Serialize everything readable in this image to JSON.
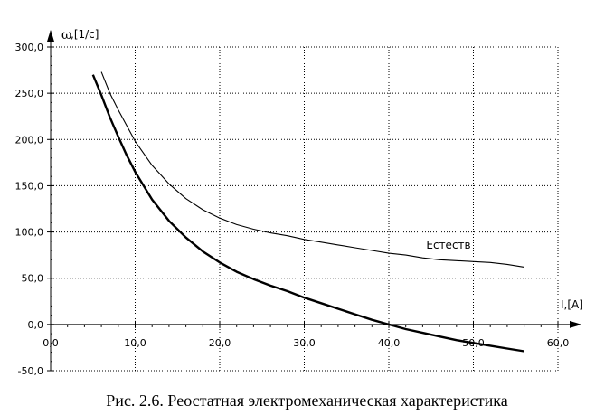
{
  "caption": "Рис. 2.6. Реостатная электромеханическая характеристика",
  "chart_data": {
    "type": "line",
    "title": "",
    "xlabel": "I,[A]",
    "ylabel_symbol": "ω",
    "ylabel_unit": ",[1/c]",
    "xlim": [
      0,
      60
    ],
    "ylim": [
      -50,
      300
    ],
    "grid": true,
    "x_ticks": [
      "0,0",
      "10,0",
      "20,0",
      "30,0",
      "40,0",
      "50,0",
      "60,0"
    ],
    "y_ticks": [
      "-50,0",
      "0,0",
      "50,0",
      "100,0",
      "150,0",
      "200,0",
      "250,0",
      "300,0"
    ],
    "series": [
      {
        "name": "Естеств",
        "style": "thin",
        "x": [
          6,
          7,
          8,
          9,
          10,
          12,
          14,
          16,
          18,
          20,
          22,
          24,
          26,
          28,
          30,
          32,
          34,
          36,
          38,
          40,
          42,
          44,
          46,
          48,
          50,
          52,
          54,
          56
        ],
        "y": [
          273,
          250,
          232,
          215,
          198,
          172,
          152,
          136,
          124,
          115,
          108,
          103,
          99,
          96,
          92,
          89,
          86,
          83,
          80,
          77,
          75,
          72,
          70,
          69,
          68,
          67,
          65,
          62
        ]
      },
      {
        "name": "",
        "style": "bold",
        "x": [
          5,
          6,
          7,
          8,
          9,
          10,
          12,
          14,
          16,
          18,
          20,
          22,
          24,
          26,
          28,
          30,
          32,
          34,
          36,
          38,
          40,
          42,
          44,
          46,
          48,
          50,
          52,
          54,
          56
        ],
        "y": [
          270,
          248,
          224,
          203,
          183,
          165,
          135,
          112,
          94,
          79,
          67,
          57,
          49,
          42,
          36,
          29,
          23,
          17,
          11,
          5,
          0,
          -5,
          -9,
          -13,
          -17,
          -20,
          -23,
          -26,
          -29
        ]
      }
    ]
  }
}
